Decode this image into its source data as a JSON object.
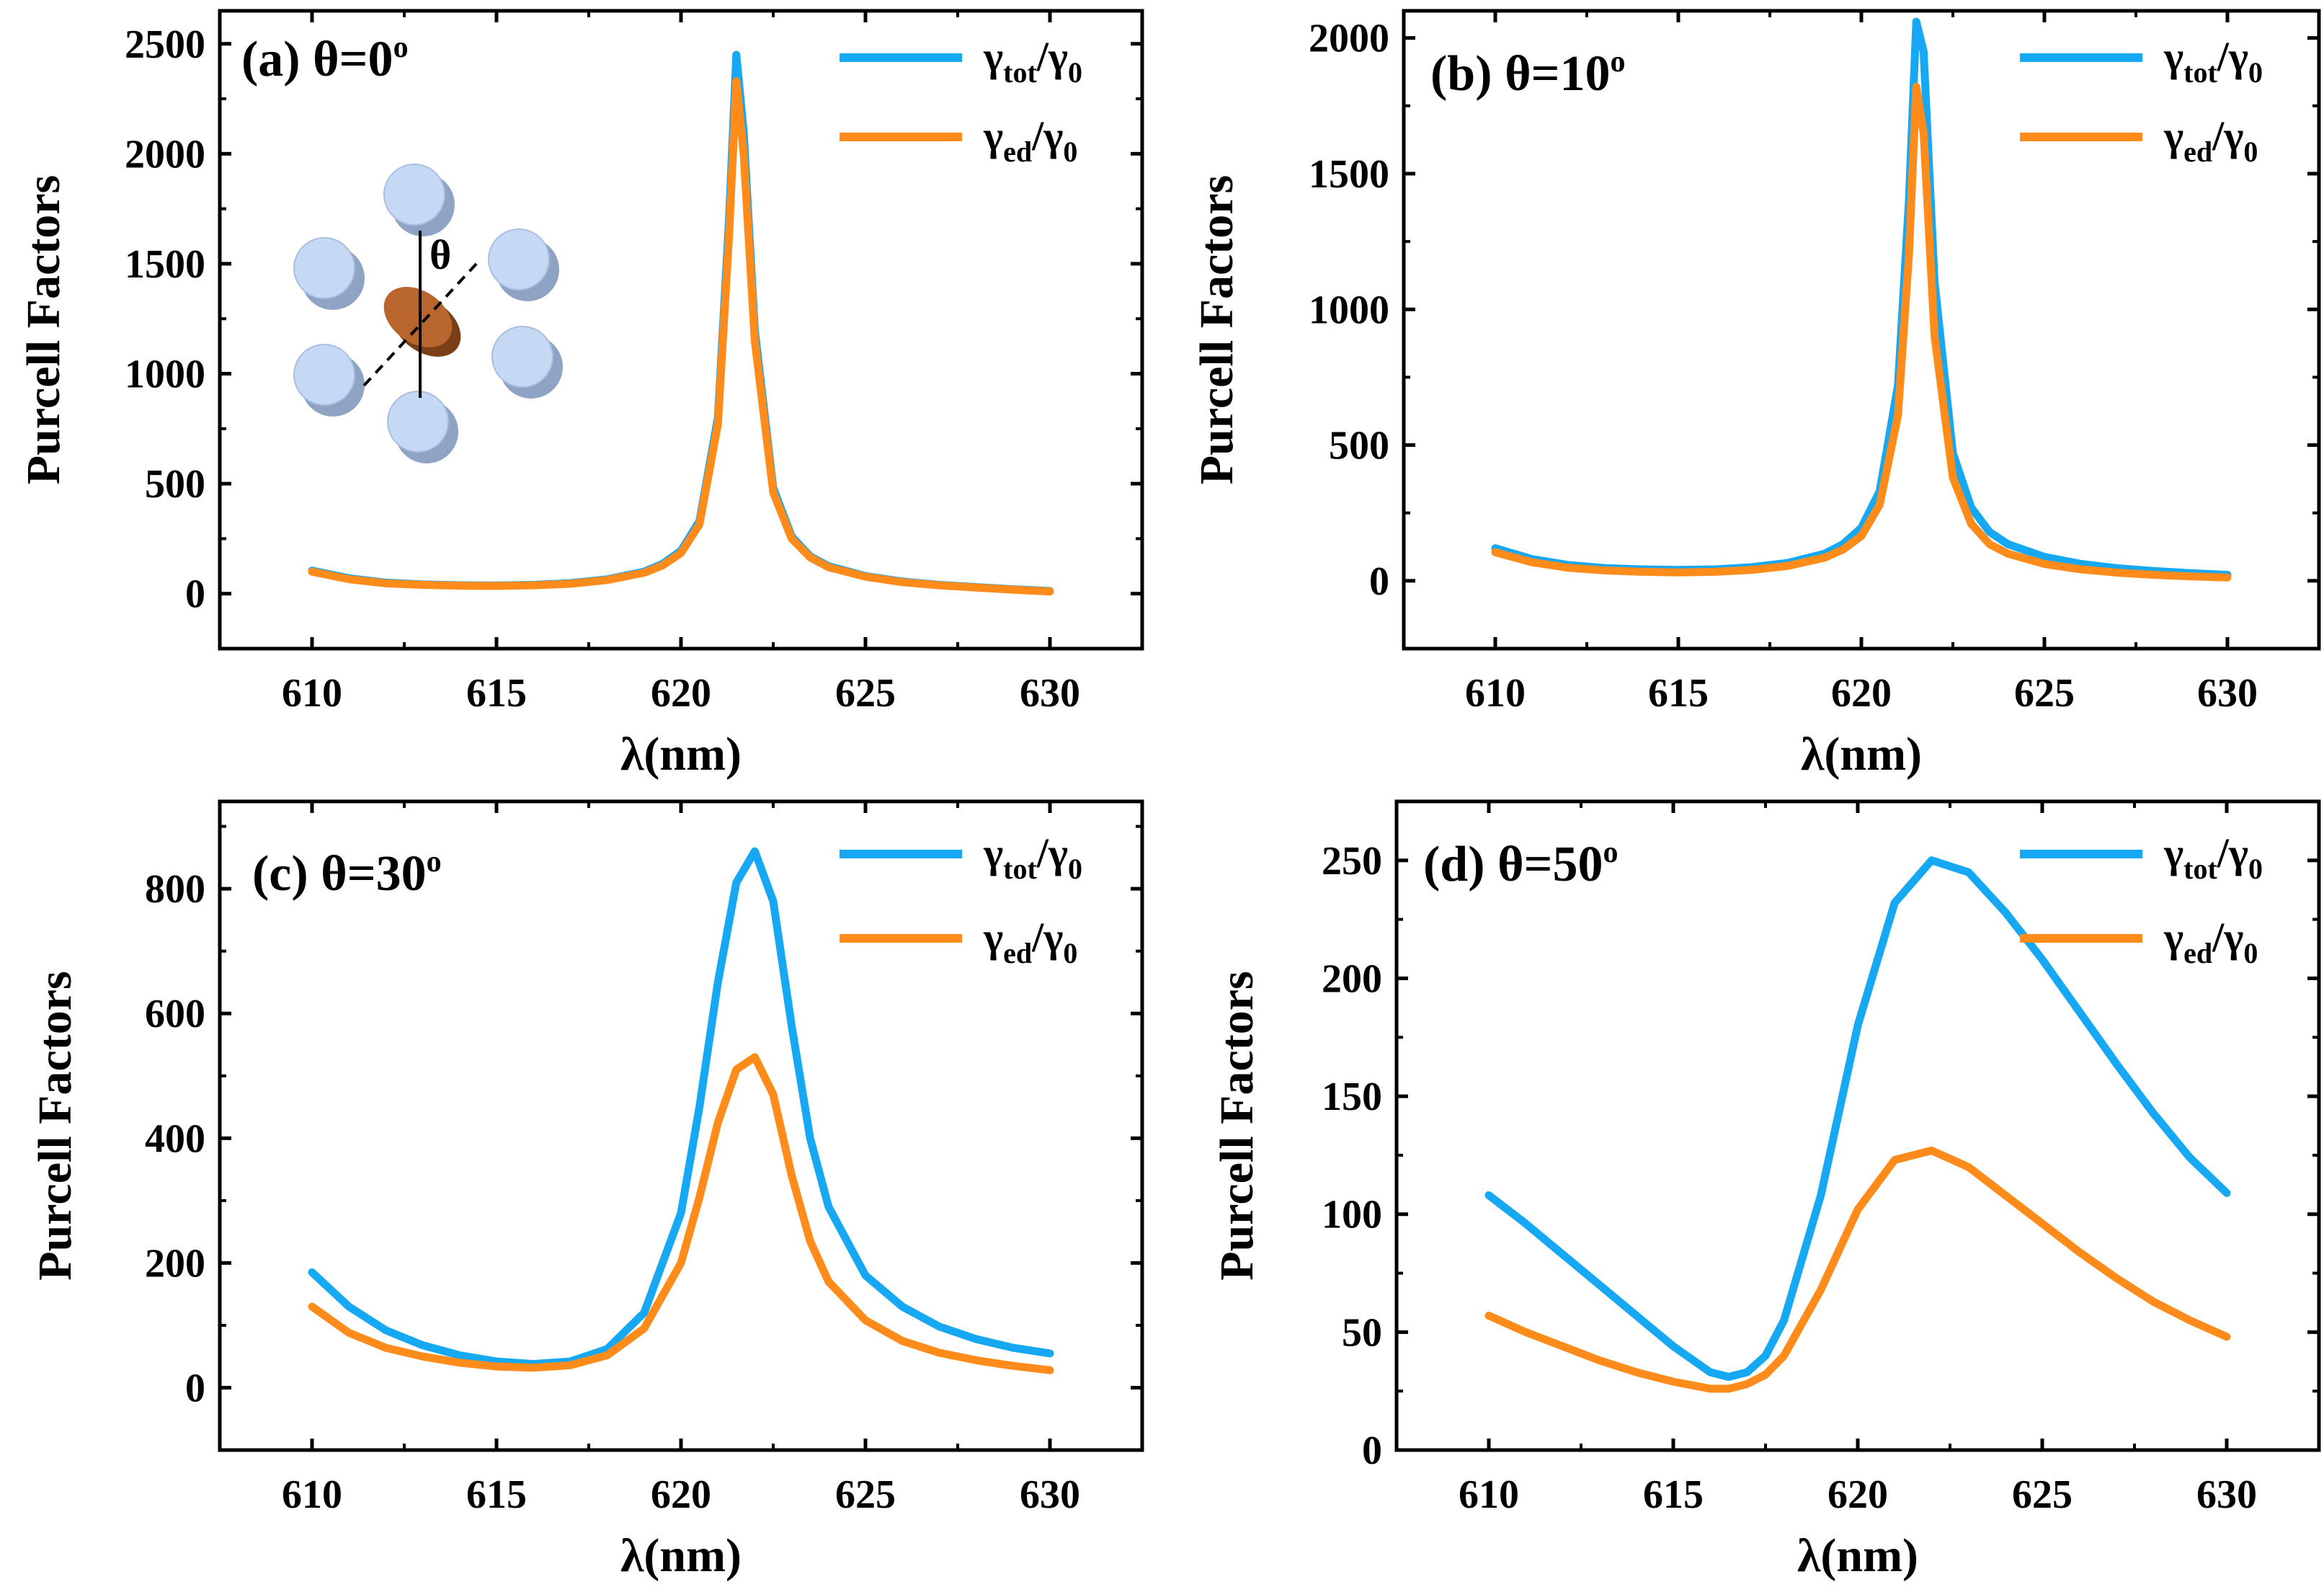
{
  "colors": {
    "tot": "#17a8f3",
    "ed": "#ff8c1a",
    "axis": "#000000",
    "cylinder": "#c5d8f4",
    "disk": "#b8662e"
  },
  "chart_data": [
    {
      "type": "line",
      "panel": "(a)",
      "theta": "θ=0",
      "theta_sup": "o",
      "xlabel": "λ(nm)",
      "ylabel": "Purcell Factors",
      "xlim": [
        607.5,
        632.5
      ],
      "ylim": [
        -250,
        2650
      ],
      "xticks": [
        610,
        615,
        620,
        625,
        630
      ],
      "yticks": [
        0,
        500,
        1000,
        1500,
        2000,
        2500
      ],
      "legend": [
        {
          "key": "tot",
          "main": "γ",
          "sub": "tot",
          "mid": "/γ",
          "sub2": "0"
        },
        {
          "key": "ed",
          "main": "γ",
          "sub": "ed",
          "mid": "/γ",
          "sub2": "0"
        }
      ],
      "inset": {
        "angle_label": "θ"
      },
      "series": [
        {
          "name": "γtot/γ0",
          "key": "tot",
          "x": [
            610,
            611,
            612,
            613,
            614,
            615,
            616,
            617,
            618,
            619,
            619.5,
            620,
            620.5,
            621,
            621.3,
            621.5,
            621.7,
            622,
            622.5,
            623,
            623.5,
            624,
            625,
            626,
            627,
            628,
            629,
            630
          ],
          "values": [
            105,
            70,
            50,
            42,
            38,
            37,
            40,
            48,
            65,
            100,
            135,
            195,
            330,
            800,
            1700,
            2450,
            2100,
            1200,
            480,
            260,
            170,
            125,
            80,
            55,
            40,
            30,
            20,
            12
          ]
        },
        {
          "name": "γed/γ0",
          "key": "ed",
          "x": [
            610,
            611,
            612,
            613,
            614,
            615,
            616,
            617,
            618,
            619,
            619.5,
            620,
            620.5,
            621,
            621.3,
            621.5,
            621.7,
            622,
            622.5,
            623,
            623.5,
            624,
            625,
            626,
            627,
            628,
            629,
            630
          ],
          "values": [
            100,
            66,
            47,
            40,
            36,
            35,
            38,
            45,
            62,
            95,
            128,
            185,
            315,
            770,
            1620,
            2330,
            2000,
            1150,
            460,
            250,
            165,
            120,
            77,
            52,
            38,
            28,
            18,
            10
          ]
        }
      ]
    },
    {
      "type": "line",
      "panel": "(b)",
      "theta": "θ=10",
      "theta_sup": "o",
      "xlabel": "λ(nm)",
      "ylabel": "Purcell Factors",
      "xlim": [
        607.5,
        632.5
      ],
      "ylim": [
        -250,
        2100
      ],
      "xticks": [
        610,
        615,
        620,
        625,
        630
      ],
      "yticks": [
        0,
        500,
        1000,
        1500,
        2000
      ],
      "legend": [
        {
          "key": "tot",
          "main": "γ",
          "sub": "tot",
          "mid": "/γ",
          "sub2": "0"
        },
        {
          "key": "ed",
          "main": "γ",
          "sub": "ed",
          "mid": "/γ",
          "sub2": "0"
        }
      ],
      "series": [
        {
          "name": "γtot/γ0",
          "key": "tot",
          "x": [
            610,
            611,
            612,
            613,
            614,
            615,
            616,
            617,
            618,
            619,
            619.5,
            620,
            620.5,
            621,
            621.3,
            621.5,
            621.7,
            622,
            622.5,
            623,
            623.5,
            624,
            625,
            626,
            627,
            628,
            629,
            630
          ],
          "values": [
            120,
            80,
            58,
            47,
            42,
            40,
            42,
            50,
            66,
            100,
            135,
            195,
            330,
            720,
            1400,
            2060,
            1950,
            1100,
            470,
            270,
            180,
            135,
            88,
            62,
            46,
            36,
            28,
            22
          ]
        },
        {
          "name": "γed/γ0",
          "key": "ed",
          "x": [
            610,
            611,
            612,
            613,
            614,
            615,
            616,
            617,
            618,
            619,
            619.5,
            620,
            620.5,
            621,
            621.3,
            621.5,
            621.7,
            622,
            622.5,
            623,
            623.5,
            624,
            625,
            626,
            627,
            628,
            629,
            630
          ],
          "values": [
            105,
            68,
            48,
            38,
            33,
            31,
            33,
            40,
            55,
            85,
            115,
            165,
            280,
            610,
            1200,
            1820,
            1650,
            900,
            380,
            210,
            135,
            100,
            62,
            42,
            30,
            22,
            16,
            12
          ]
        }
      ]
    },
    {
      "type": "line",
      "panel": "(c)",
      "theta": "θ=30",
      "theta_sup": "o",
      "xlabel": "λ(nm)",
      "ylabel": "Purcell Factors",
      "xlim": [
        607.5,
        632.5
      ],
      "ylim": [
        -100,
        940
      ],
      "xticks": [
        610,
        615,
        620,
        625,
        630
      ],
      "yticks": [
        0,
        200,
        400,
        600,
        800
      ],
      "legend": [
        {
          "key": "tot",
          "main": "γ",
          "sub": "tot",
          "mid": "/γ",
          "sub2": "0"
        },
        {
          "key": "ed",
          "main": "γ",
          "sub": "ed",
          "mid": "/γ",
          "sub2": "0"
        }
      ],
      "series": [
        {
          "name": "γtot/γ0",
          "key": "tot",
          "x": [
            610,
            611,
            612,
            613,
            614,
            615,
            616,
            617,
            618,
            619,
            620,
            620.5,
            621,
            621.5,
            622,
            622.5,
            623,
            623.5,
            624,
            625,
            626,
            627,
            628,
            629,
            630
          ],
          "values": [
            185,
            130,
            92,
            68,
            52,
            42,
            38,
            42,
            62,
            120,
            280,
            450,
            650,
            810,
            860,
            780,
            580,
            400,
            290,
            180,
            130,
            98,
            78,
            64,
            55
          ]
        },
        {
          "name": "γed/γ0",
          "key": "ed",
          "x": [
            610,
            611,
            612,
            613,
            614,
            615,
            616,
            617,
            618,
            619,
            620,
            620.5,
            621,
            621.5,
            622,
            622.5,
            623,
            623.5,
            624,
            625,
            626,
            627,
            628,
            629,
            630
          ],
          "values": [
            130,
            88,
            64,
            50,
            40,
            34,
            32,
            36,
            52,
            95,
            200,
            305,
            425,
            510,
            530,
            470,
            340,
            235,
            170,
            108,
            75,
            56,
            44,
            35,
            28
          ]
        }
      ]
    },
    {
      "type": "line",
      "panel": "(d)",
      "theta": "θ=50",
      "theta_sup": "o",
      "xlabel": "λ(nm)",
      "ylabel": "Purcell Factors",
      "xlim": [
        607.5,
        632.5
      ],
      "ylim": [
        0,
        275
      ],
      "xticks": [
        610,
        615,
        620,
        625,
        630
      ],
      "yticks": [
        0,
        50,
        100,
        150,
        200,
        250
      ],
      "legend": [
        {
          "key": "tot",
          "main": "γ",
          "sub": "tot",
          "mid": "/γ",
          "sub2": "0"
        },
        {
          "key": "ed",
          "main": "γ",
          "sub": "ed",
          "mid": "/γ",
          "sub2": "0"
        }
      ],
      "series": [
        {
          "name": "γtot/γ0",
          "key": "tot",
          "x": [
            610,
            611,
            612,
            613,
            614,
            615,
            616,
            616.5,
            617,
            617.5,
            618,
            619,
            620,
            621,
            622,
            623,
            624,
            625,
            626,
            627,
            628,
            629,
            630
          ],
          "values": [
            108,
            96,
            83,
            70,
            57,
            44,
            33,
            31,
            33,
            40,
            55,
            108,
            180,
            232,
            250,
            245,
            228,
            208,
            186,
            164,
            143,
            124,
            109
          ]
        },
        {
          "name": "γed/γ0",
          "key": "ed",
          "x": [
            610,
            611,
            612,
            613,
            614,
            615,
            616,
            616.5,
            617,
            617.5,
            618,
            619,
            620,
            621,
            622,
            623,
            624,
            625,
            626,
            627,
            628,
            629,
            630
          ],
          "values": [
            57,
            50,
            44,
            38,
            33,
            29,
            26,
            26,
            28,
            32,
            40,
            68,
            102,
            123,
            127,
            120,
            108,
            96,
            84,
            73,
            63,
            55,
            48
          ]
        }
      ]
    }
  ]
}
